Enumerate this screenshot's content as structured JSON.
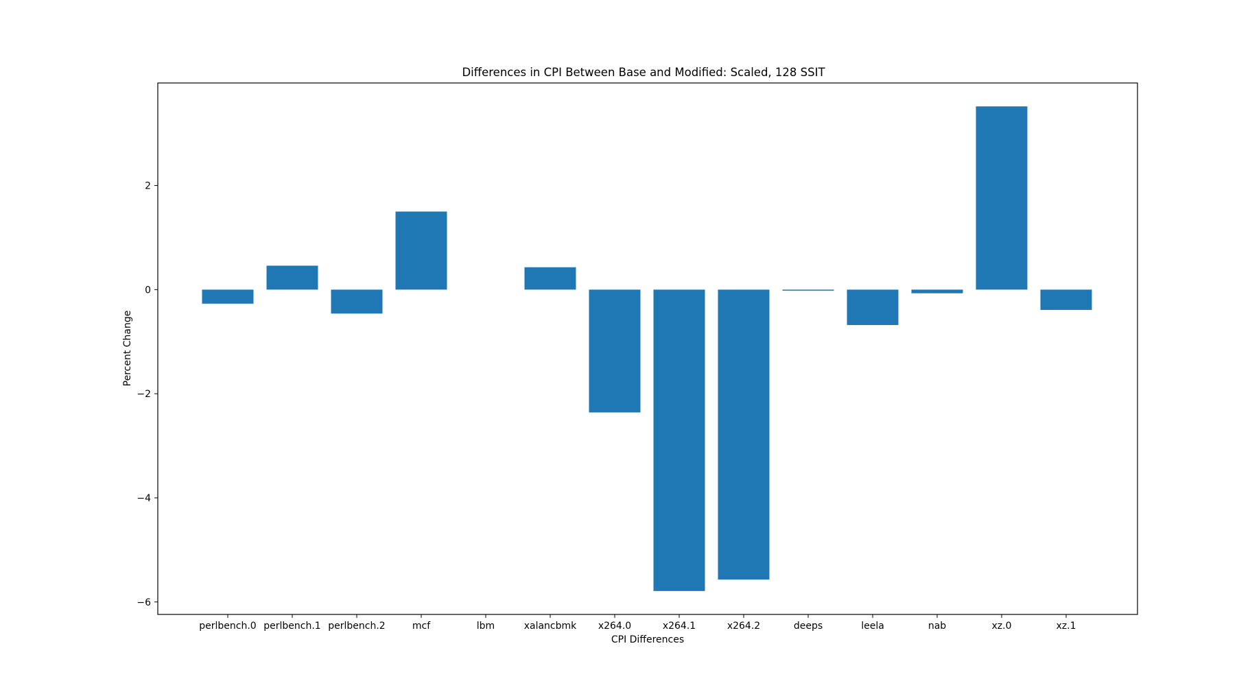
{
  "chart_data": {
    "type": "bar",
    "title": "Differences in CPI Between Base and Modified: Scaled, 128 SSIT",
    "xlabel": "CPI Differences",
    "ylabel": "Percent Change",
    "categories": [
      "perlbench.0",
      "perlbench.1",
      "perlbench.2",
      "mcf",
      "lbm",
      "xalancbmk",
      "x264.0",
      "x264.1",
      "x264.2",
      "deeps",
      "leela",
      "nab",
      "xz.0",
      "xz.1"
    ],
    "values": [
      -0.27,
      0.46,
      -0.46,
      1.5,
      0.0,
      0.43,
      -2.36,
      -5.79,
      -5.57,
      -0.02,
      -0.68,
      -0.07,
      3.52,
      -0.39
    ],
    "yticks": [
      -6,
      -4,
      -2,
      0,
      2
    ],
    "ytick_labels": [
      "−6",
      "−4",
      "−2",
      "0",
      "2"
    ],
    "ylim": [
      -6.24,
      3.97
    ],
    "grid": false,
    "legend": "none",
    "bar_color": "#1f77b4"
  }
}
